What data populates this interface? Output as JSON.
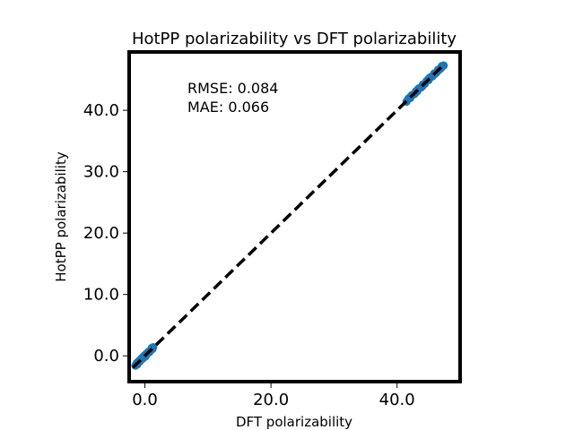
{
  "chart_data": {
    "type": "scatter",
    "title": "HotPP polarizability vs DFT polarizability",
    "xlabel": "DFT  polarizability",
    "ylabel": "HotPP polarizability",
    "xlim": [
      -2.5,
      50.0
    ],
    "ylim": [
      -4.2,
      49.5
    ],
    "xticks": [
      0.0,
      20.0,
      40.0
    ],
    "yticks": [
      0.0,
      10.0,
      20.0,
      30.0,
      40.0
    ],
    "xtick_labels": [
      "0.0",
      "20.0",
      "40.0"
    ],
    "ytick_labels": [
      "0.0",
      "10.0",
      "20.0",
      "30.0",
      "40.0"
    ],
    "grid": false,
    "annotations": [
      "RMSE: 0.084",
      "MAE: 0.066"
    ],
    "reference_line": {
      "from": [
        -1.9,
        -1.9
      ],
      "to": [
        47.6,
        47.6
      ],
      "style": "dashed",
      "color": "#000000"
    },
    "marker_color": "#1f77b4",
    "series": [
      {
        "values": [
          [
            -1.5,
            -1.6
          ],
          [
            -1.3,
            -1.2
          ],
          [
            -1.1,
            -1.0
          ],
          [
            -0.9,
            -0.8
          ],
          [
            -0.8,
            -0.9
          ],
          [
            -0.6,
            -0.5
          ],
          [
            -0.4,
            -0.3
          ],
          [
            -0.3,
            -0.4
          ],
          [
            -0.1,
            0.0
          ],
          [
            0.0,
            0.1
          ],
          [
            0.2,
            0.2
          ],
          [
            0.3,
            0.4
          ],
          [
            0.5,
            0.5
          ],
          [
            0.6,
            0.7
          ],
          [
            0.8,
            0.8
          ],
          [
            1.0,
            1.0
          ],
          [
            1.2,
            1.1
          ],
          [
            1.3,
            1.4
          ],
          [
            -1.2,
            -1.4
          ],
          [
            -0.7,
            -0.7
          ],
          [
            0.1,
            -0.1
          ],
          [
            0.7,
            0.6
          ],
          [
            1.1,
            1.3
          ],
          [
            -0.2,
            -0.1
          ],
          [
            41.5,
            41.4
          ],
          [
            41.8,
            41.9
          ],
          [
            42.1,
            42.0
          ],
          [
            42.4,
            42.5
          ],
          [
            42.7,
            42.6
          ],
          [
            43.0,
            43.1
          ],
          [
            43.2,
            43.1
          ],
          [
            43.5,
            43.6
          ],
          [
            43.8,
            43.7
          ],
          [
            44.1,
            44.2
          ],
          [
            44.4,
            44.3
          ],
          [
            44.7,
            44.8
          ],
          [
            45.0,
            44.9
          ],
          [
            45.3,
            45.4
          ],
          [
            45.6,
            45.5
          ],
          [
            45.9,
            46.0
          ],
          [
            46.2,
            46.1
          ],
          [
            46.5,
            46.6
          ],
          [
            46.8,
            46.7
          ],
          [
            47.1,
            47.2
          ],
          [
            47.4,
            47.3
          ],
          [
            42.9,
            42.8
          ],
          [
            44.0,
            43.9
          ],
          [
            45.1,
            45.2
          ],
          [
            46.0,
            45.9
          ],
          [
            43.3,
            43.4
          ],
          [
            44.9,
            45.0
          ],
          [
            46.4,
            46.3
          ],
          [
            42.2,
            42.3
          ],
          [
            47.0,
            46.9
          ]
        ]
      }
    ]
  }
}
